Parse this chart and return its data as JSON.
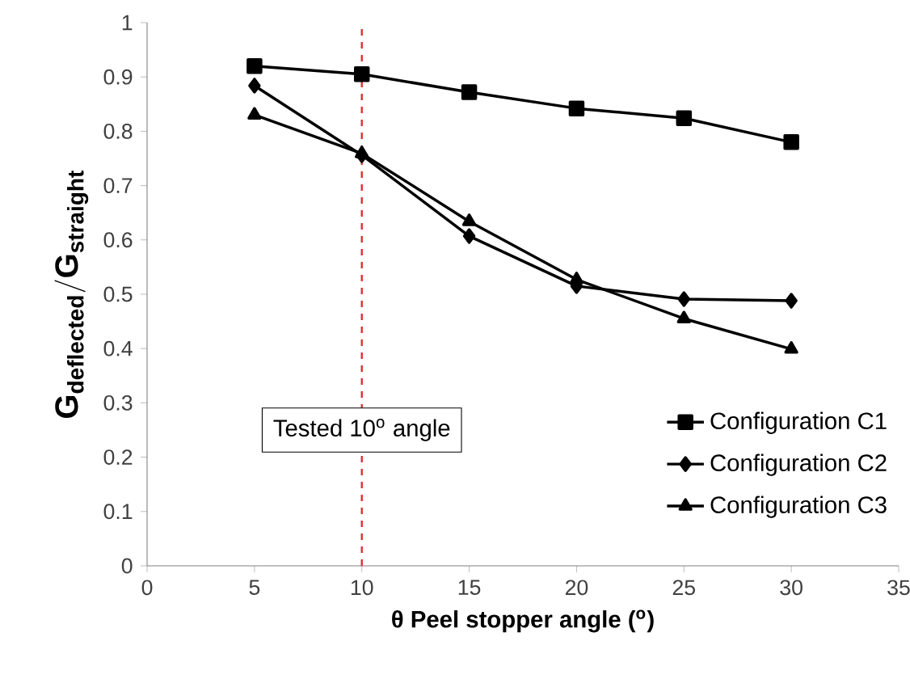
{
  "chart_data": {
    "type": "line",
    "xlabel": "θ Peel stopper angle ($^{o}$)",
    "ylabel": "\\mathbf{G_{deflected}/G_{straight}}",
    "x": [
      5,
      10,
      15,
      20,
      25,
      30
    ],
    "series": [
      {
        "name": "Configuration C1",
        "color": "#000000",
        "marker": "square",
        "values": [
          0.92,
          0.905,
          0.872,
          0.842,
          0.824,
          0.78
        ]
      },
      {
        "name": "Configuration C2",
        "color": "#000000",
        "marker": "diamond",
        "values": [
          0.884,
          0.756,
          0.607,
          0.515,
          0.491,
          0.488
        ]
      },
      {
        "name": "Configuration C3",
        "color": "#000000",
        "marker": "triangle",
        "values": [
          0.83,
          0.759,
          0.634,
          0.527,
          0.455,
          0.399
        ]
      }
    ],
    "xlim": [
      0,
      35
    ],
    "xticks": [
      0,
      5,
      10,
      15,
      20,
      25,
      30,
      35
    ],
    "ylim": [
      0,
      1
    ],
    "yticks": [
      0,
      0.1,
      0.2,
      0.3,
      0.4,
      0.5,
      0.6,
      0.7,
      0.8,
      0.9,
      1
    ],
    "ref_lines": [
      {
        "axis": "x",
        "value": 10,
        "label": "Tested 10$^{o}$ angle",
        "color": "#e03030",
        "line_style": "dashed"
      }
    ],
    "grid": false,
    "legend": "bottom right",
    "line_style": "solid"
  }
}
